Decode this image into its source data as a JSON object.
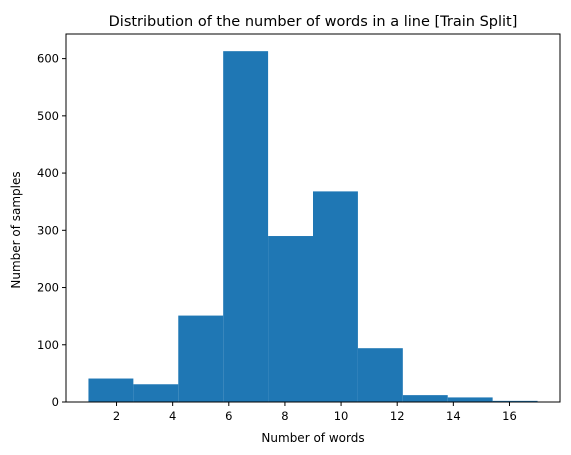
{
  "chart_data": {
    "type": "bar",
    "title": "Distribution of the number of words in a line [Train Split]",
    "xlabel": "Number of words",
    "ylabel": "Number of samples",
    "bin_edges": [
      1,
      2.6,
      4.2,
      5.8,
      7.4,
      9,
      10.6,
      12.2,
      13.8,
      15.4,
      17
    ],
    "values": [
      41,
      31,
      151,
      613,
      290,
      368,
      94,
      12,
      8,
      2
    ],
    "xlim": [
      0.2,
      17.8
    ],
    "ylim": [
      0,
      643
    ],
    "xticks": [
      2,
      4,
      6,
      8,
      10,
      12,
      14,
      16
    ],
    "yticks": [
      0,
      100,
      200,
      300,
      400,
      500,
      600
    ],
    "grid": false,
    "legend": "none",
    "bar_color": "#1f77b4"
  }
}
